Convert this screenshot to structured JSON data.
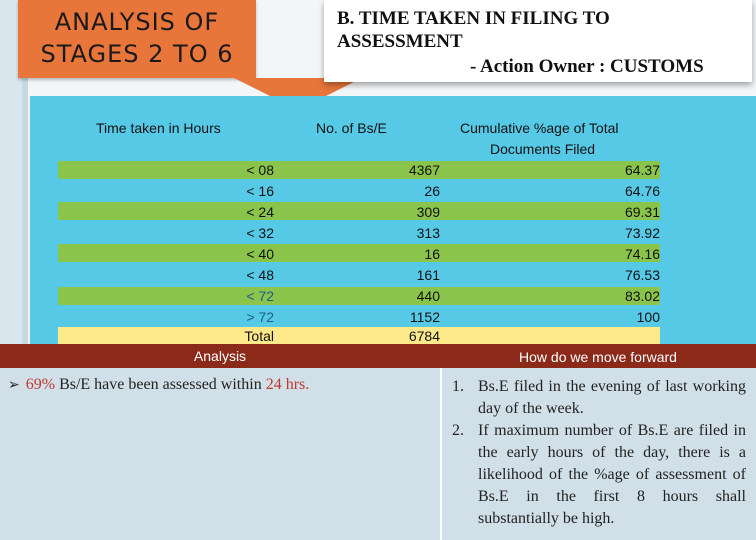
{
  "title": {
    "line1": "ANALYSIS OF",
    "line2": "STAGES 2 TO 6"
  },
  "header": {
    "line1": "B. TIME TAKEN IN FILING TO",
    "line2": "ASSESSMENT",
    "line3": "- Action Owner : CUSTOMS"
  },
  "table": {
    "columns": [
      "Time taken in Hours",
      "No. of Bs/E",
      "Cumulative %age of Total",
      "Documents Filed"
    ],
    "rows": [
      {
        "hours": "< 08",
        "count": "4367",
        "cumulative": "64.37"
      },
      {
        "hours": "< 16",
        "count": "26",
        "cumulative": "64.76"
      },
      {
        "hours": "< 24",
        "count": "309",
        "cumulative": "69.31"
      },
      {
        "hours": "< 32",
        "count": "313",
        "cumulative": "73.92"
      },
      {
        "hours": "< 40",
        "count": "16",
        "cumulative": "74.16"
      },
      {
        "hours": "< 48",
        "count": "161",
        "cumulative": "76.53"
      },
      {
        "hours": "< 72",
        "count": "440",
        "cumulative": "83.02"
      },
      {
        "hours": "> 72",
        "count": "1152",
        "cumulative": "100"
      }
    ],
    "total_label": "Total",
    "total_count": "6784"
  },
  "analysis": {
    "heading": "Analysis",
    "pct": "69%",
    "text_mid": " Bs/E have been assessed within ",
    "hours": "24 hrs."
  },
  "move_forward": {
    "heading": "How do we move forward",
    "items": [
      {
        "num": "1.",
        "text": "Bs.E filed in the evening of last working day of the week."
      },
      {
        "num": "2.",
        "text": "If maximum number of Bs.E are filed in the early hours of the day, there is a likelihood of the %age of assessment of Bs.E in the first 8 hours shall substantially be high."
      }
    ]
  }
}
